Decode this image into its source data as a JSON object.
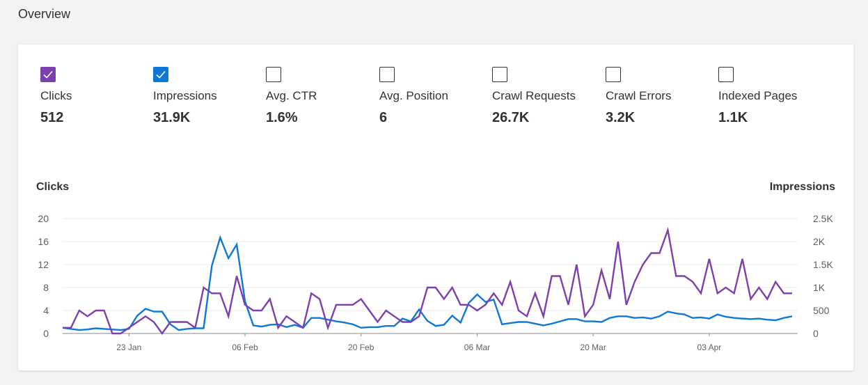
{
  "header": {
    "title": "Overview"
  },
  "metrics": [
    {
      "label": "Clicks",
      "value": "512",
      "checked": true,
      "color": "#7B3FB0"
    },
    {
      "label": "Impressions",
      "value": "31.9K",
      "checked": true,
      "color": "#0E78D4"
    },
    {
      "label": "Avg. CTR",
      "value": "1.6%",
      "checked": false
    },
    {
      "label": "Avg. Position",
      "value": "6",
      "checked": false
    },
    {
      "label": "Crawl Requests",
      "value": "26.7K",
      "checked": false
    },
    {
      "label": "Crawl Errors",
      "value": "3.2K",
      "checked": false
    },
    {
      "label": "Indexed Pages",
      "value": "1.1K",
      "checked": false
    }
  ],
  "chart_data": {
    "type": "line",
    "title": "",
    "y_left_label": "Clicks",
    "y_right_label": "Impressions",
    "y_left_lim": [
      0,
      20
    ],
    "y_right_lim": [
      0,
      2500
    ],
    "y_left_ticks": [
      "0",
      "4",
      "8",
      "12",
      "16",
      "20"
    ],
    "y_right_ticks": [
      "0",
      "500",
      "1K",
      "1.5K",
      "2K",
      "2.5K"
    ],
    "x_tick_labels": [
      {
        "index": 8,
        "label": "23 Jan"
      },
      {
        "index": 22,
        "label": "06 Feb"
      },
      {
        "index": 36,
        "label": "20 Feb"
      },
      {
        "index": 50,
        "label": "06 Mar"
      },
      {
        "index": 64,
        "label": "20 Mar"
      },
      {
        "index": 78,
        "label": "03 Apr"
      }
    ],
    "grid": true,
    "series": [
      {
        "name": "Clicks",
        "axis": "left",
        "color": "#7B3FB0",
        "values": [
          1,
          1,
          4,
          3,
          4,
          4,
          0,
          0,
          1,
          2,
          3,
          2,
          0,
          2,
          2,
          2,
          1,
          8,
          7,
          7,
          3,
          10,
          5,
          4,
          4,
          6,
          1,
          3,
          2,
          1,
          7,
          6,
          1,
          5,
          5,
          5,
          6,
          4,
          2,
          4,
          3,
          2,
          2,
          3,
          8,
          8,
          6,
          8,
          5,
          5,
          4,
          5,
          7,
          5,
          9,
          4,
          3,
          7,
          3,
          10,
          10,
          5,
          12,
          3,
          5,
          11,
          6,
          16,
          5,
          9,
          12,
          14,
          14,
          18,
          10,
          10,
          9,
          7,
          13,
          7,
          8,
          7,
          13,
          6,
          8,
          6,
          9,
          7,
          7
        ]
      },
      {
        "name": "Impressions",
        "axis": "right",
        "color": "#0E78D4",
        "values": [
          125,
          100,
          75,
          88,
          113,
          100,
          88,
          75,
          100,
          388,
          538,
          475,
          475,
          200,
          75,
          100,
          113,
          113,
          1475,
          2088,
          1638,
          1938,
          700,
          175,
          150,
          188,
          200,
          138,
          188,
          125,
          338,
          338,
          300,
          263,
          238,
          200,
          125,
          138,
          138,
          163,
          163,
          325,
          263,
          525,
          275,
          163,
          188,
          388,
          238,
          663,
          850,
          688,
          738,
          200,
          225,
          250,
          250,
          213,
          175,
          213,
          263,
          313,
          313,
          263,
          263,
          250,
          338,
          375,
          375,
          338,
          350,
          325,
          375,
          475,
          438,
          413,
          338,
          350,
          325,
          413,
          363,
          338,
          325,
          313,
          325,
          300,
          288,
          338,
          375
        ]
      }
    ]
  }
}
